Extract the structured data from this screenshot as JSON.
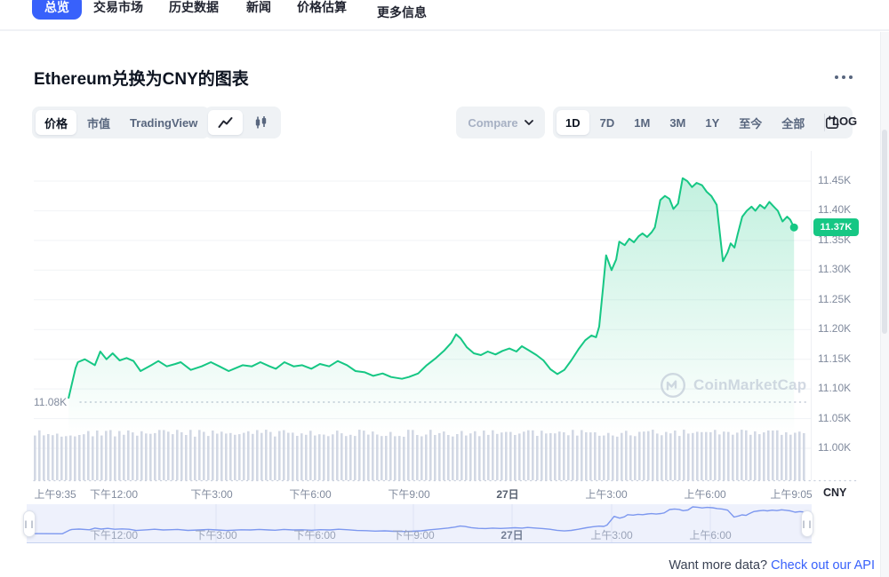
{
  "nav": {
    "tabs": [
      {
        "label": "总览",
        "active": true
      },
      {
        "label": "交易市场",
        "active": false
      },
      {
        "label": "历史数据",
        "active": false
      },
      {
        "label": "新闻",
        "active": false
      },
      {
        "label": "价格估算",
        "active": false
      },
      {
        "label": "更多信息",
        "active": false
      }
    ]
  },
  "header": {
    "title": "Ethereum兑换为CNY的图表"
  },
  "toolbar": {
    "metric_tabs": [
      {
        "label": "价格",
        "active": true
      },
      {
        "label": "市值",
        "active": false
      },
      {
        "label": "TradingView",
        "active": false
      }
    ],
    "chart_types": [
      {
        "name": "line-chart",
        "active": true
      },
      {
        "name": "candlestick-chart",
        "active": false
      }
    ],
    "compare_label": "Compare",
    "ranges": [
      {
        "label": "1D",
        "active": true
      },
      {
        "label": "7D",
        "active": false
      },
      {
        "label": "1M",
        "active": false
      },
      {
        "label": "3M",
        "active": false
      },
      {
        "label": "1Y",
        "active": false
      },
      {
        "label": "至今",
        "active": false
      },
      {
        "label": "全部",
        "active": false
      }
    ],
    "log_label": "LOG"
  },
  "chart_data": {
    "type": "line",
    "title": "Ethereum兑换为CNY的图表",
    "unit": "CNY",
    "current_price_label": "11.37K",
    "current_price": 11372,
    "session_open_label": "11.08K",
    "session_open": 11080,
    "ylabel": "CNY",
    "y_range_k": [
      11.0,
      11.475
    ],
    "y_ticks": [
      {
        "label": "11.45K",
        "value": 11.45
      },
      {
        "label": "11.40K",
        "value": 11.4
      },
      {
        "label": "11.35K",
        "value": 11.35
      },
      {
        "label": "11.30K",
        "value": 11.3
      },
      {
        "label": "11.25K",
        "value": 11.25
      },
      {
        "label": "11.20K",
        "value": 11.2
      },
      {
        "label": "11.15K",
        "value": 11.15
      },
      {
        "label": "11.10K",
        "value": 11.1
      },
      {
        "label": "11.05K",
        "value": 11.05
      },
      {
        "label": "11.00K",
        "value": 11.0
      }
    ],
    "x_ticks": [
      {
        "label": "上午9:35"
      },
      {
        "label": "下午12:00"
      },
      {
        "label": "下午3:00"
      },
      {
        "label": "下午6:00"
      },
      {
        "label": "下午9:00"
      },
      {
        "label": "27日",
        "emphasis": true
      },
      {
        "label": "上午3:00"
      },
      {
        "label": "上午6:00"
      },
      {
        "label": "上午9:05"
      }
    ],
    "series_points": [
      [
        0.045,
        11.085
      ],
      [
        0.054,
        11.135
      ],
      [
        0.057,
        11.145
      ],
      [
        0.066,
        11.15
      ],
      [
        0.079,
        11.14
      ],
      [
        0.086,
        11.163
      ],
      [
        0.094,
        11.15
      ],
      [
        0.102,
        11.16
      ],
      [
        0.111,
        11.148
      ],
      [
        0.12,
        11.152
      ],
      [
        0.129,
        11.147
      ],
      [
        0.138,
        11.13
      ],
      [
        0.152,
        11.14
      ],
      [
        0.161,
        11.147
      ],
      [
        0.172,
        11.138
      ],
      [
        0.183,
        11.142
      ],
      [
        0.19,
        11.145
      ],
      [
        0.203,
        11.132
      ],
      [
        0.217,
        11.138
      ],
      [
        0.229,
        11.145
      ],
      [
        0.24,
        11.138
      ],
      [
        0.252,
        11.13
      ],
      [
        0.259,
        11.134
      ],
      [
        0.27,
        11.14
      ],
      [
        0.282,
        11.138
      ],
      [
        0.293,
        11.145
      ],
      [
        0.305,
        11.138
      ],
      [
        0.313,
        11.134
      ],
      [
        0.324,
        11.145
      ],
      [
        0.336,
        11.138
      ],
      [
        0.347,
        11.14
      ],
      [
        0.359,
        11.134
      ],
      [
        0.37,
        11.142
      ],
      [
        0.382,
        11.138
      ],
      [
        0.393,
        11.147
      ],
      [
        0.405,
        11.14
      ],
      [
        0.416,
        11.13
      ],
      [
        0.428,
        11.128
      ],
      [
        0.439,
        11.122
      ],
      [
        0.451,
        11.126
      ],
      [
        0.462,
        11.12
      ],
      [
        0.476,
        11.117
      ],
      [
        0.485,
        11.12
      ],
      [
        0.497,
        11.126
      ],
      [
        0.508,
        11.14
      ],
      [
        0.52,
        11.152
      ],
      [
        0.531,
        11.165
      ],
      [
        0.54,
        11.178
      ],
      [
        0.546,
        11.192
      ],
      [
        0.552,
        11.185
      ],
      [
        0.56,
        11.17
      ],
      [
        0.569,
        11.16
      ],
      [
        0.578,
        11.157
      ],
      [
        0.587,
        11.163
      ],
      [
        0.597,
        11.158
      ],
      [
        0.606,
        11.164
      ],
      [
        0.615,
        11.168
      ],
      [
        0.624,
        11.163
      ],
      [
        0.631,
        11.172
      ],
      [
        0.64,
        11.165
      ],
      [
        0.65,
        11.157
      ],
      [
        0.659,
        11.148
      ],
      [
        0.668,
        11.133
      ],
      [
        0.677,
        11.125
      ],
      [
        0.686,
        11.132
      ],
      [
        0.695,
        11.148
      ],
      [
        0.705,
        11.168
      ],
      [
        0.713,
        11.182
      ],
      [
        0.721,
        11.19
      ],
      [
        0.727,
        11.187
      ],
      [
        0.731,
        11.205
      ],
      [
        0.736,
        11.27
      ],
      [
        0.74,
        11.325
      ],
      [
        0.747,
        11.3
      ],
      [
        0.753,
        11.318
      ],
      [
        0.757,
        11.348
      ],
      [
        0.764,
        11.342
      ],
      [
        0.77,
        11.353
      ],
      [
        0.776,
        11.347
      ],
      [
        0.782,
        11.357
      ],
      [
        0.787,
        11.362
      ],
      [
        0.793,
        11.356
      ],
      [
        0.799,
        11.364
      ],
      [
        0.803,
        11.372
      ],
      [
        0.81,
        11.418
      ],
      [
        0.816,
        11.425
      ],
      [
        0.822,
        11.42
      ],
      [
        0.827,
        11.403
      ],
      [
        0.833,
        11.412
      ],
      [
        0.839,
        11.455
      ],
      [
        0.845,
        11.45
      ],
      [
        0.851,
        11.44
      ],
      [
        0.857,
        11.447
      ],
      [
        0.864,
        11.443
      ],
      [
        0.87,
        11.432
      ],
      [
        0.876,
        11.425
      ],
      [
        0.883,
        11.41
      ],
      [
        0.891,
        11.315
      ],
      [
        0.897,
        11.33
      ],
      [
        0.901,
        11.345
      ],
      [
        0.906,
        11.338
      ],
      [
        0.91,
        11.36
      ],
      [
        0.916,
        11.39
      ],
      [
        0.922,
        11.4
      ],
      [
        0.928,
        11.407
      ],
      [
        0.933,
        11.4
      ],
      [
        0.939,
        11.41
      ],
      [
        0.945,
        11.404
      ],
      [
        0.951,
        11.415
      ],
      [
        0.956,
        11.408
      ],
      [
        0.962,
        11.4
      ],
      [
        0.968,
        11.382
      ],
      [
        0.974,
        11.39
      ],
      [
        0.978,
        11.385
      ],
      [
        0.983,
        11.372
      ]
    ],
    "volume": {
      "bars": 174,
      "profile": "near-uniform",
      "relative_height_range": [
        0.86,
        1.0
      ]
    },
    "navigator_ticks": [
      {
        "label": "下午12:00"
      },
      {
        "label": "下午3:00"
      },
      {
        "label": "下午6:00"
      },
      {
        "label": "下午9:00"
      },
      {
        "label": "27日",
        "emphasis": true
      },
      {
        "label": "上午3:00"
      },
      {
        "label": "上午6:00"
      }
    ],
    "watermark": "CoinMarketCap",
    "colors": {
      "line": "#16c784",
      "badge": "#16c784",
      "volume": "#d2d8e4",
      "navigator_line": "#7d98ef",
      "navigator_fill": "#dbe2f9",
      "navigator_bg": "#eef1fc",
      "accent": "#3861fb"
    }
  },
  "footer": {
    "prompt": "Want more data?",
    "link_label": "Check out our API"
  }
}
